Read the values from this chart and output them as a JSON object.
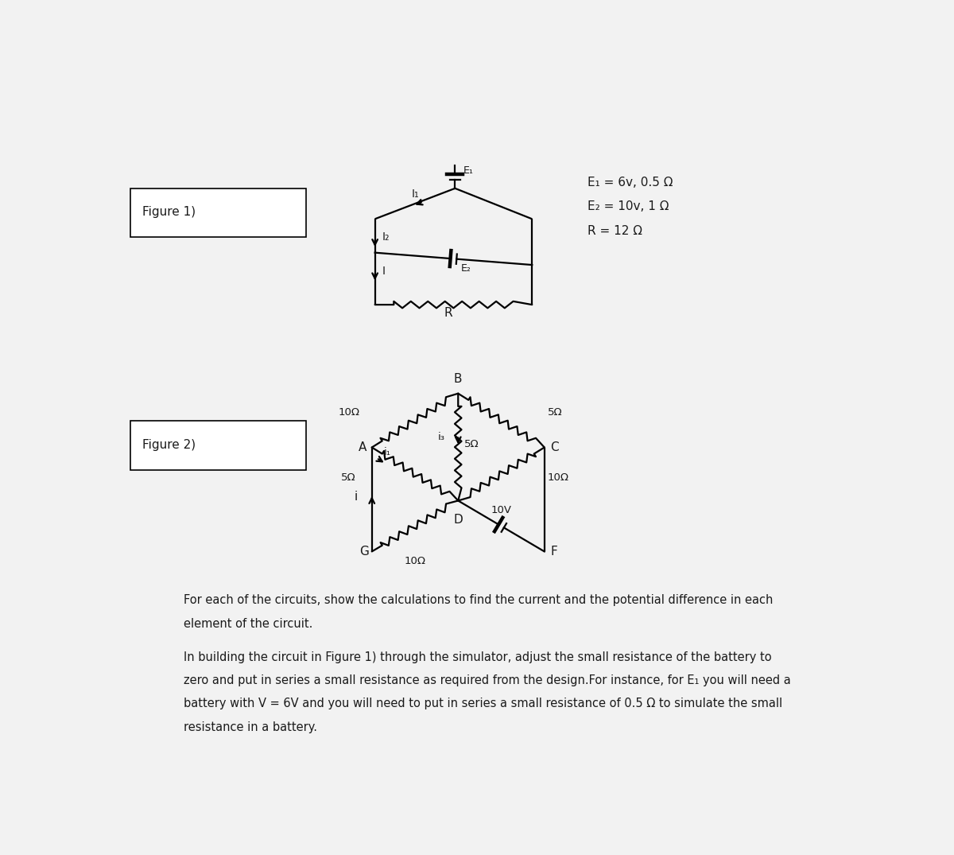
{
  "fig1_label": "Figure 1)",
  "fig2_label": "Figure 2)",
  "fig1_param1": "E₁ = 6v, 0.5 Ω",
  "fig1_param2": "E₂ = 10v, 1 Ω",
  "fig1_param3": "R = 12 Ω",
  "text_para1_line1": "For each of the circuits, show the calculations to find the current and the potential difference in each",
  "text_para1_line2": "element of the circuit.",
  "text_para2_line1": "In building the circuit in Figure 1) through the simulator, adjust the small resistance of the battery to",
  "text_para2_line2": "zero and put in series a small resistance as required from the design.For instance, for E₁ you will need a",
  "text_para2_line3": "battery with V = 6V and you will need to put in series a small resistance of 0.5 Ω to simulate the small",
  "text_para2_line4": "resistance in a battery.",
  "bg_color": "#f2f2f2",
  "line_color": "#1a1a1a",
  "text_color": "#1a1a1a"
}
